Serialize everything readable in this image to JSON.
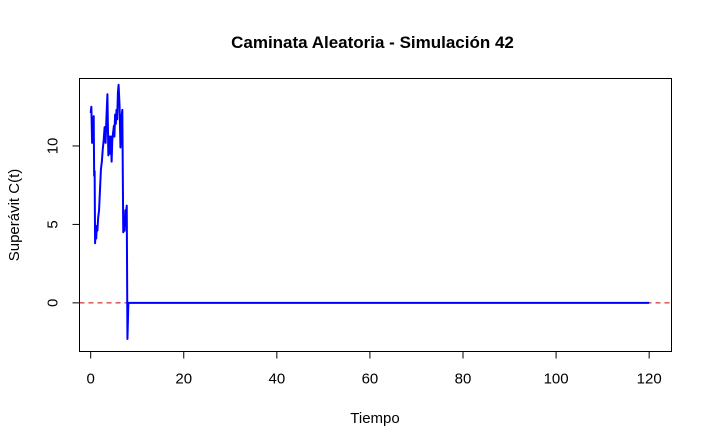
{
  "chart_data": {
    "type": "line",
    "title": "Caminata Aleatoria - Simulación 42",
    "xlabel": "Tiempo",
    "ylabel": "Superávit C(t)",
    "xlim": [
      -2.4,
      124.8
    ],
    "ylim": [
      -3.1,
      14.3
    ],
    "x_ticks": [
      0,
      20,
      40,
      60,
      80,
      100,
      120
    ],
    "y_ticks": [
      0,
      5,
      10
    ],
    "grid": false,
    "reference_line": {
      "y": 0,
      "style": "dashed",
      "color": "#cc0000"
    },
    "series": [
      {
        "color": "#0000ff",
        "x": [
          0,
          0.15,
          0.3,
          0.4,
          0.55,
          0.65,
          0.75,
          0.85,
          0.95,
          1.05,
          1.2,
          1.3,
          1.45,
          1.6,
          1.8,
          2.0,
          2.2,
          2.4,
          2.6,
          2.8,
          3.0,
          3.2,
          3.4,
          3.6,
          3.8,
          4.0,
          4.2,
          4.35,
          4.5,
          4.65,
          4.8,
          5.0,
          5.1,
          5.25,
          5.4,
          5.55,
          5.7,
          5.85,
          6.0,
          6.2,
          6.4,
          6.6,
          6.8,
          7.0,
          7.15,
          7.3,
          7.45,
          7.6,
          7.75,
          7.9,
          8.1,
          8.25,
          8.4,
          8.55,
          8.7,
          8.85,
          9.0,
          9.1,
          9.2,
          9.3,
          9.45,
          9.6,
          9.7,
          9.8,
          120
        ],
        "y": [
          12.1,
          12.5,
          10.2,
          11.8,
          10.5,
          11.9,
          8.1,
          8.4,
          3.8,
          4.5,
          4.1,
          4.9,
          4.6,
          5.4,
          5.9,
          7.2,
          8.5,
          9.0,
          9.8,
          10.4,
          11.2,
          10.2,
          11.9,
          13.3,
          9.4,
          10.6,
          9.5,
          10.6,
          9.0,
          10.4,
          10.8,
          11.3,
          10.6,
          12.0,
          11.4,
          12.3,
          11.7,
          13.4,
          13.9,
          12.6,
          9.9,
          11.8,
          12.3,
          4.5,
          5.3,
          4.6,
          5.9,
          5.7,
          6.2,
          -2.3,
          0,
          0,
          0,
          0,
          0,
          0,
          0,
          0,
          0,
          0,
          0,
          0,
          0,
          0,
          0
        ]
      }
    ]
  }
}
